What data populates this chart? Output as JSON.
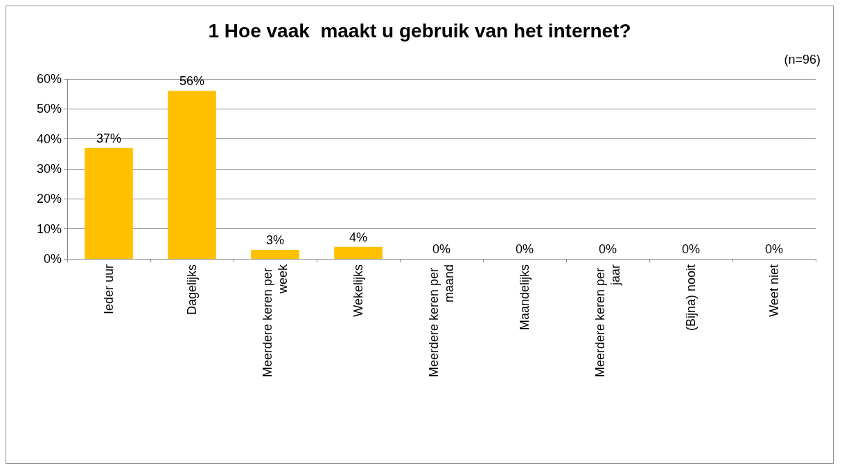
{
  "chart_data": {
    "type": "bar",
    "title": "1 Hoe vaak  maakt u gebruik van het internet?",
    "annotations": [
      "(n=96)"
    ],
    "categories": [
      "Ieder uur",
      "Dagelijks",
      "Meerdere keren per week",
      "Wekelijks",
      "Meerdere keren per maand",
      "Maandelijks",
      "Meerdere keren per jaar",
      "(Bijna) nooit",
      "Weet niet"
    ],
    "values": [
      37,
      56,
      3,
      4,
      0,
      0,
      0,
      0,
      0
    ],
    "value_labels": [
      "37%",
      "56%",
      "3%",
      "4%",
      "0%",
      "0%",
      "0%",
      "0%",
      "0%"
    ],
    "color": "#ffc000",
    "ylim": [
      0,
      60
    ],
    "yticks": [
      {
        "value": 0,
        "label": "0%"
      },
      {
        "value": 10,
        "label": "10%"
      },
      {
        "value": 20,
        "label": "20%"
      },
      {
        "value": 30,
        "label": "30%"
      },
      {
        "value": 40,
        "label": "40%"
      },
      {
        "value": 50,
        "label": "50%"
      },
      {
        "value": 60,
        "label": "60%"
      }
    ],
    "grid": "y"
  }
}
